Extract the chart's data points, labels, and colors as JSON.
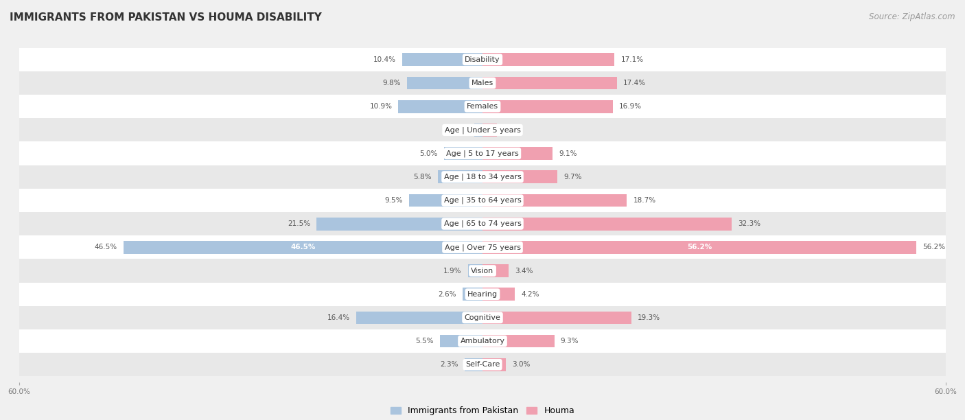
{
  "title": "IMMIGRANTS FROM PAKISTAN VS HOUMA DISABILITY",
  "source": "Source: ZipAtlas.com",
  "categories": [
    "Disability",
    "Males",
    "Females",
    "Age | Under 5 years",
    "Age | 5 to 17 years",
    "Age | 18 to 34 years",
    "Age | 35 to 64 years",
    "Age | 65 to 74 years",
    "Age | Over 75 years",
    "Vision",
    "Hearing",
    "Cognitive",
    "Ambulatory",
    "Self-Care"
  ],
  "left_values": [
    10.4,
    9.8,
    10.9,
    1.1,
    5.0,
    5.8,
    9.5,
    21.5,
    46.5,
    1.9,
    2.6,
    16.4,
    5.5,
    2.3
  ],
  "right_values": [
    17.1,
    17.4,
    16.9,
    1.9,
    9.1,
    9.7,
    18.7,
    32.3,
    56.2,
    3.4,
    4.2,
    19.3,
    9.3,
    3.0
  ],
  "left_color": "#aac4de",
  "right_color": "#f0a0b0",
  "left_label": "Immigrants from Pakistan",
  "right_label": "Houma",
  "axis_max": 60.0,
  "bg_color": "#f0f0f0",
  "title_fontsize": 11,
  "source_fontsize": 8.5,
  "label_fontsize": 8,
  "value_fontsize": 7.5,
  "legend_fontsize": 9,
  "bar_height": 0.55,
  "row_bg_colors": [
    "#ffffff",
    "#e8e8e8"
  ]
}
